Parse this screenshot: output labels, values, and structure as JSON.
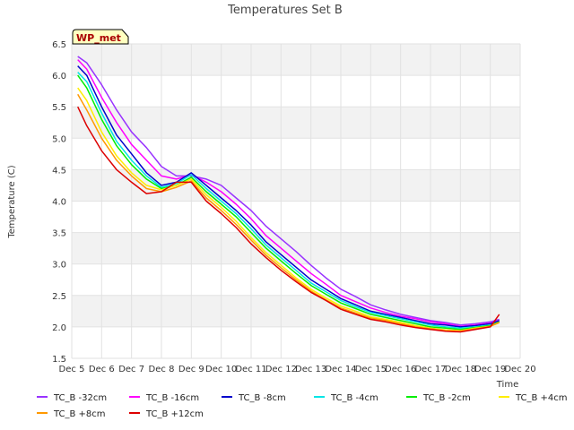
{
  "chart_data": {
    "type": "line",
    "title": "Temperatures Set B",
    "xlabel": "Time",
    "ylabel": "Temperature (C)",
    "ylim": [
      1.5,
      6.5
    ],
    "xlim": [
      5,
      20
    ],
    "yticks": [
      1.5,
      2.0,
      2.5,
      3.0,
      3.5,
      4.0,
      4.5,
      5.0,
      5.5,
      6.0,
      6.5
    ],
    "ytick_labels": [
      "1.5",
      "2.0",
      "2.5",
      "3.0",
      "3.5",
      "4.0",
      "4.5",
      "5.0",
      "5.5",
      "6.0",
      "6.5"
    ],
    "xticks": [
      5,
      6,
      7,
      8,
      9,
      10,
      11,
      12,
      13,
      14,
      15,
      16,
      17,
      18,
      19,
      20
    ],
    "xtick_labels": [
      "Dec 5",
      "Dec 6",
      "Dec 7",
      "Dec 8",
      "Dec 9",
      "Dec 10",
      "Dec 11",
      "Dec 12",
      "Dec 13",
      "Dec 14",
      "Dec 15",
      "Dec 16",
      "Dec 17",
      "Dec 18",
      "Dec 19",
      "Dec 20"
    ],
    "station_label": "WP_met",
    "legend_position": "bottom",
    "series": [
      {
        "name": "TC_B -32cm",
        "color": "#9933ff",
        "x": [
          5.2,
          5.5,
          6.0,
          6.5,
          7.0,
          7.5,
          8.0,
          8.5,
          9.0,
          9.5,
          10.0,
          10.5,
          11.0,
          11.5,
          12.0,
          12.5,
          13.0,
          13.5,
          14.0,
          14.5,
          15.0,
          15.5,
          16.0,
          16.5,
          17.0,
          17.5,
          18.0,
          18.5,
          19.0,
          19.3
        ],
        "y": [
          6.3,
          6.2,
          5.85,
          5.45,
          5.1,
          4.85,
          4.55,
          4.4,
          4.4,
          4.35,
          4.25,
          4.05,
          3.85,
          3.6,
          3.4,
          3.2,
          2.98,
          2.78,
          2.6,
          2.48,
          2.35,
          2.27,
          2.2,
          2.15,
          2.1,
          2.07,
          2.03,
          2.05,
          2.08,
          2.12
        ]
      },
      {
        "name": "TC_B -16cm",
        "color": "#ff00ff",
        "x": [
          5.2,
          5.5,
          6.0,
          6.5,
          7.0,
          7.5,
          8.0,
          8.5,
          9.0,
          9.5,
          10.0,
          10.5,
          11.0,
          11.5,
          12.0,
          12.5,
          13.0,
          13.5,
          14.0,
          14.5,
          15.0,
          15.5,
          16.0,
          16.5,
          17.0,
          17.5,
          18.0,
          18.5,
          19.0,
          19.3
        ],
        "y": [
          6.25,
          6.1,
          5.65,
          5.25,
          4.9,
          4.65,
          4.4,
          4.35,
          4.42,
          4.3,
          4.15,
          3.95,
          3.72,
          3.45,
          3.25,
          3.05,
          2.85,
          2.68,
          2.5,
          2.4,
          2.3,
          2.23,
          2.17,
          2.13,
          2.08,
          2.05,
          2.01,
          2.03,
          2.06,
          2.1
        ]
      },
      {
        "name": "TC_B -8cm",
        "color": "#0000cc",
        "x": [
          5.2,
          5.5,
          6.0,
          6.5,
          7.0,
          7.5,
          8.0,
          8.5,
          9.0,
          9.5,
          10.0,
          10.5,
          11.0,
          11.5,
          12.0,
          12.5,
          13.0,
          13.5,
          14.0,
          14.5,
          15.0,
          15.5,
          16.0,
          16.5,
          17.0,
          17.5,
          18.0,
          18.5,
          19.0,
          19.3
        ],
        "y": [
          6.15,
          6.0,
          5.5,
          5.05,
          4.75,
          4.45,
          4.25,
          4.3,
          4.45,
          4.25,
          4.05,
          3.85,
          3.62,
          3.35,
          3.15,
          2.95,
          2.75,
          2.6,
          2.45,
          2.35,
          2.25,
          2.2,
          2.15,
          2.1,
          2.05,
          2.03,
          2.0,
          2.02,
          2.05,
          2.1
        ]
      },
      {
        "name": "TC_B -4cm",
        "color": "#00e5e5",
        "x": [
          5.2,
          5.5,
          6.0,
          6.5,
          7.0,
          7.5,
          8.0,
          8.5,
          9.0,
          9.5,
          10.0,
          10.5,
          11.0,
          11.5,
          12.0,
          12.5,
          13.0,
          13.5,
          14.0,
          14.5,
          15.0,
          15.5,
          16.0,
          16.5,
          17.0,
          17.5,
          18.0,
          18.5,
          19.0,
          19.3
        ],
        "y": [
          6.05,
          5.9,
          5.4,
          4.95,
          4.65,
          4.4,
          4.22,
          4.28,
          4.42,
          4.2,
          4.0,
          3.8,
          3.56,
          3.3,
          3.1,
          2.9,
          2.7,
          2.56,
          2.42,
          2.32,
          2.23,
          2.18,
          2.13,
          2.08,
          2.03,
          2.0,
          1.98,
          2.0,
          2.03,
          2.08
        ]
      },
      {
        "name": "TC_B -2cm",
        "color": "#00ee00",
        "x": [
          5.2,
          5.5,
          6.0,
          6.5,
          7.0,
          7.5,
          8.0,
          8.5,
          9.0,
          9.5,
          10.0,
          10.5,
          11.0,
          11.5,
          12.0,
          12.5,
          13.0,
          13.5,
          14.0,
          14.5,
          15.0,
          15.5,
          16.0,
          16.5,
          17.0,
          17.5,
          18.0,
          18.5,
          19.0,
          19.3
        ],
        "y": [
          6.0,
          5.8,
          5.3,
          4.88,
          4.58,
          4.35,
          4.2,
          4.25,
          4.38,
          4.15,
          3.95,
          3.75,
          3.5,
          3.25,
          3.05,
          2.85,
          2.66,
          2.52,
          2.38,
          2.29,
          2.2,
          2.15,
          2.1,
          2.05,
          2.0,
          1.98,
          1.96,
          1.99,
          2.02,
          2.08
        ]
      },
      {
        "name": "TC_B +4cm",
        "color": "#ffee00",
        "x": [
          5.2,
          5.5,
          6.0,
          6.5,
          7.0,
          7.5,
          8.0,
          8.5,
          9.0,
          9.5,
          10.0,
          10.5,
          11.0,
          11.5,
          12.0,
          12.5,
          13.0,
          13.5,
          14.0,
          14.5,
          15.0,
          15.5,
          16.0,
          16.5,
          17.0,
          17.5,
          18.0,
          18.5,
          19.0,
          19.3
        ],
        "y": [
          5.8,
          5.6,
          5.1,
          4.72,
          4.45,
          4.25,
          4.18,
          4.25,
          4.35,
          4.1,
          3.9,
          3.68,
          3.42,
          3.18,
          2.98,
          2.78,
          2.6,
          2.46,
          2.33,
          2.25,
          2.16,
          2.12,
          2.07,
          2.02,
          1.98,
          1.95,
          1.94,
          1.98,
          2.01,
          2.07
        ]
      },
      {
        "name": "TC_B +8cm",
        "color": "#ff9900",
        "x": [
          5.2,
          5.5,
          6.0,
          6.5,
          7.0,
          7.5,
          8.0,
          8.5,
          9.0,
          9.5,
          10.0,
          10.5,
          11.0,
          11.5,
          12.0,
          12.5,
          13.0,
          13.5,
          14.0,
          14.5,
          15.0,
          15.5,
          16.0,
          16.5,
          17.0,
          17.5,
          18.0,
          18.5,
          19.0,
          19.3
        ],
        "y": [
          5.7,
          5.45,
          5.0,
          4.65,
          4.4,
          4.2,
          4.15,
          4.22,
          4.32,
          4.05,
          3.85,
          3.63,
          3.38,
          3.14,
          2.94,
          2.75,
          2.57,
          2.43,
          2.3,
          2.22,
          2.14,
          2.1,
          2.05,
          2.0,
          1.97,
          1.94,
          1.93,
          1.97,
          2.01,
          2.07
        ]
      },
      {
        "name": "TC_B +12cm",
        "color": "#dd0000",
        "x": [
          5.2,
          5.5,
          6.0,
          6.5,
          7.0,
          7.5,
          8.0,
          8.5,
          9.0,
          9.5,
          10.0,
          10.5,
          11.0,
          11.5,
          12.0,
          12.5,
          13.0,
          13.5,
          14.0,
          14.5,
          15.0,
          15.5,
          16.0,
          16.5,
          17.0,
          17.5,
          18.0,
          18.5,
          19.0,
          19.3
        ],
        "y": [
          5.5,
          5.2,
          4.8,
          4.5,
          4.3,
          4.12,
          4.15,
          4.3,
          4.3,
          4.0,
          3.8,
          3.58,
          3.32,
          3.1,
          2.9,
          2.72,
          2.55,
          2.42,
          2.28,
          2.2,
          2.12,
          2.08,
          2.03,
          1.99,
          1.96,
          1.93,
          1.92,
          1.96,
          2.0,
          2.2
        ]
      }
    ]
  }
}
